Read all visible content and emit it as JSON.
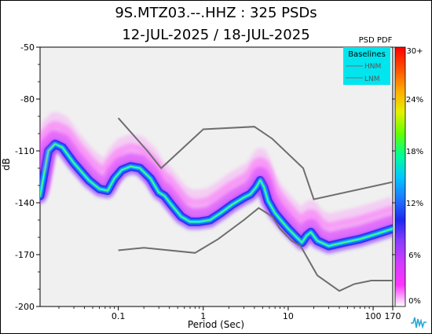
{
  "chart_data": {
    "type": "heatmap",
    "title": "9S.MTZ03.--.HHZ : 325 PSDs",
    "subtitle": "12-JUL-2025 / 18-JUL-2025",
    "xlabel": "Period (Sec)",
    "ylabel": "dB",
    "x_scale": "log",
    "xlim": [
      0.012,
      170
    ],
    "ylim": [
      -200,
      -50
    ],
    "x_ticks": [
      {
        "value": 0.1,
        "label": "0.1"
      },
      {
        "value": 1,
        "label": "1"
      },
      {
        "value": 10,
        "label": "10"
      },
      {
        "value": 100,
        "label": "100"
      },
      {
        "value": 170,
        "label": "170"
      }
    ],
    "y_ticks": [
      {
        "value": -50,
        "label": "-50"
      },
      {
        "value": -80,
        "label": "-80"
      },
      {
        "value": -110,
        "label": "-110"
      },
      {
        "value": -140,
        "label": "-140"
      },
      {
        "value": -170,
        "label": "-170"
      },
      {
        "value": -200,
        "label": "-200"
      }
    ],
    "colorbar": {
      "title": "PSD PDF",
      "min": 0,
      "max": 30,
      "unit": "%",
      "ticks": [
        {
          "value": 0,
          "label": "0%"
        },
        {
          "value": 6,
          "label": "6%"
        },
        {
          "value": 12,
          "label": "12%"
        },
        {
          "value": 18,
          "label": "18%"
        },
        {
          "value": 24,
          "label": "24%"
        },
        {
          "value": 30,
          "label": "30+"
        }
      ],
      "colors": [
        "#ffffff",
        "#ff33ff",
        "#d23cff",
        "#8c3cff",
        "#1e28f0",
        "#1e78ff",
        "#00c8ff",
        "#00ff96",
        "#64ff00",
        "#e6f000",
        "#ffaa00",
        "#ff5000",
        "#ff0000"
      ]
    },
    "legend": {
      "title": "Baselines",
      "placement": "top-right",
      "background": "#00e5ee",
      "entries": [
        "HNM",
        "LNM"
      ]
    },
    "series": [
      {
        "name": "HNM",
        "color": "#6e6e6e",
        "points": [
          [
            0.1,
            -91
          ],
          [
            0.22,
            -110
          ],
          [
            0.32,
            -120
          ],
          [
            1,
            -97.5
          ],
          [
            4,
            -96
          ],
          [
            6.5,
            -103
          ],
          [
            15,
            -120
          ],
          [
            20,
            -138
          ],
          [
            170,
            -128
          ]
        ]
      },
      {
        "name": "LNM",
        "color": "#6e6e6e",
        "points": [
          [
            0.1,
            -167.5
          ],
          [
            0.2,
            -166
          ],
          [
            0.8,
            -169
          ],
          [
            1.5,
            -161
          ],
          [
            3,
            -150
          ],
          [
            4.5,
            -143
          ],
          [
            6.5,
            -148
          ],
          [
            8,
            -155
          ],
          [
            11,
            -162
          ],
          [
            14,
            -165
          ],
          [
            22,
            -182
          ],
          [
            40,
            -191
          ],
          [
            60,
            -187
          ],
          [
            95,
            -185
          ],
          [
            170,
            -185
          ]
        ]
      },
      {
        "name": "PSD mode",
        "color": "#00d2ff",
        "points": [
          [
            0.012,
            -136
          ],
          [
            0.015,
            -110
          ],
          [
            0.018,
            -106
          ],
          [
            0.022,
            -108
          ],
          [
            0.03,
            -117
          ],
          [
            0.045,
            -127
          ],
          [
            0.06,
            -132
          ],
          [
            0.075,
            -133
          ],
          [
            0.09,
            -126
          ],
          [
            0.11,
            -121
          ],
          [
            0.14,
            -119
          ],
          [
            0.18,
            -120
          ],
          [
            0.24,
            -126
          ],
          [
            0.3,
            -134
          ],
          [
            0.35,
            -136
          ],
          [
            0.42,
            -141
          ],
          [
            0.55,
            -148
          ],
          [
            0.7,
            -151
          ],
          [
            0.9,
            -151
          ],
          [
            1.2,
            -150
          ],
          [
            1.6,
            -146
          ],
          [
            2.2,
            -141
          ],
          [
            3,
            -137
          ],
          [
            3.6,
            -135
          ],
          [
            4.2,
            -131
          ],
          [
            4.7,
            -127
          ],
          [
            5.2,
            -131
          ],
          [
            5.8,
            -139
          ],
          [
            7,
            -146
          ],
          [
            8.5,
            -151
          ],
          [
            10,
            -155
          ],
          [
            12,
            -159
          ],
          [
            14.5,
            -163
          ],
          [
            16.5,
            -159
          ],
          [
            18.5,
            -157
          ],
          [
            22,
            -162
          ],
          [
            30,
            -165
          ],
          [
            45,
            -163
          ],
          [
            70,
            -161
          ],
          [
            110,
            -158
          ],
          [
            170,
            -155
          ]
        ]
      }
    ]
  }
}
